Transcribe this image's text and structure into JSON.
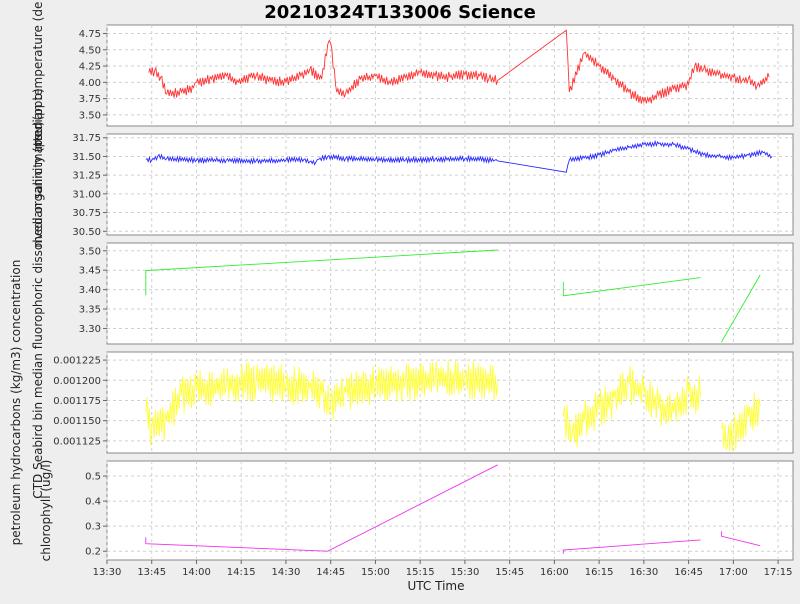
{
  "chart_data": {
    "title": "20210324T133006 Science",
    "xlabel": "UTC Time",
    "x_ticks": [
      "13:30",
      "13:45",
      "14:00",
      "14:15",
      "14:30",
      "14:45",
      "15:00",
      "15:15",
      "15:30",
      "15:45",
      "16:00",
      "16:15",
      "16:30",
      "16:45",
      "17:00",
      "17:15"
    ],
    "x_range": [
      "13:30",
      "17:20"
    ],
    "grid": true,
    "panels": [
      {
        "type": "line",
        "ylabel": "median temperature (de",
        "color": "#ff3333",
        "ylim": [
          3.33,
          4.88
        ],
        "y_ticks": [
          3.5,
          3.75,
          4.0,
          4.25,
          4.5,
          4.75
        ],
        "y_tick_labels": [
          "3.50",
          "3.75",
          "4.00",
          "4.25",
          "4.50",
          "4.75"
        ],
        "noise": 0.16,
        "series": [
          {
            "x": [
              "13:44",
              "13:46",
              "13:48",
              "13:50",
              "13:55",
              "13:59",
              "14:00",
              "14:05",
              "14:10",
              "14:14",
              "14:18",
              "14:20",
              "14:25",
              "14:30",
              "14:35",
              "14:38",
              "14:42",
              "14:44",
              "14:45",
              "14:47",
              "14:50",
              "14:55",
              "15:00",
              "15:05",
              "15:10",
              "15:15",
              "15:20",
              "15:25",
              "15:30",
              "15:35",
              "15:38",
              "15:41"
            ],
            "y": [
              4.15,
              4.18,
              4.08,
              3.82,
              3.85,
              3.92,
              4.0,
              4.05,
              4.1,
              4.0,
              4.08,
              4.1,
              4.02,
              4.0,
              4.1,
              4.2,
              4.05,
              4.58,
              4.6,
              3.85,
              3.83,
              4.05,
              4.1,
              3.98,
              4.07,
              4.15,
              4.1,
              4.08,
              4.12,
              4.1,
              4.05,
              4.03
            ]
          },
          {
            "x": [
              "15:41",
              "16:04",
              "16:05",
              "16:10",
              "16:15",
              "16:20",
              "16:25",
              "16:30",
              "16:35",
              "16:40",
              "16:45",
              "16:47",
              "16:50",
              "16:55",
              "17:00",
              "17:03",
              "17:05",
              "17:08",
              "17:12"
            ],
            "y": [
              4.03,
              4.8,
              3.85,
              4.45,
              4.25,
              4.05,
              3.85,
              3.7,
              3.8,
              3.9,
              3.97,
              4.25,
              4.2,
              4.12,
              4.08,
              4.03,
              4.05,
              3.95,
              4.08
            ]
          }
        ]
      },
      {
        "type": "line",
        "ylabel": "median salinity (psu)",
        "color": "#2a2aff",
        "ylim": [
          30.45,
          31.8
        ],
        "y_ticks": [
          30.5,
          30.75,
          31.0,
          31.25,
          31.5,
          31.75
        ],
        "y_tick_labels": [
          "30.50",
          "30.75",
          "31.00",
          "31.25",
          "31.50",
          "31.75"
        ],
        "noise": 0.07,
        "series": [
          {
            "x": [
              "13:43",
              "13:45",
              "13:47",
              "13:50",
              "14:00",
              "14:10",
              "14:20",
              "14:30",
              "14:36",
              "14:38",
              "14:40",
              "14:41",
              "14:44",
              "14:50",
              "15:00",
              "15:10",
              "15:20",
              "15:30",
              "15:40",
              "15:41"
            ],
            "y": [
              31.46,
              31.45,
              31.5,
              31.47,
              31.45,
              31.45,
              31.44,
              31.45,
              31.46,
              31.43,
              31.42,
              31.46,
              31.5,
              31.47,
              31.46,
              31.45,
              31.46,
              31.47,
              31.45,
              31.44
            ]
          },
          {
            "x": [
              "15:41",
              "16:04",
              "16:05",
              "16:10",
              "16:15",
              "16:20",
              "16:25",
              "16:30",
              "16:35",
              "16:40",
              "16:45",
              "16:50",
              "16:55",
              "17:00",
              "17:05",
              "17:10",
              "17:13"
            ],
            "y": [
              31.44,
              31.29,
              31.45,
              31.48,
              31.52,
              31.58,
              31.62,
              31.66,
              31.67,
              31.66,
              31.6,
              31.52,
              31.5,
              31.48,
              31.52,
              31.55,
              31.5
            ]
          }
        ]
      },
      {
        "type": "line",
        "ylabel": "CTD Seabird bin median fluorophoric dissolved organic matter (ppb)",
        "color": "#33ee33",
        "ylim": [
          3.26,
          3.52
        ],
        "y_ticks": [
          3.3,
          3.35,
          3.4,
          3.45,
          3.5
        ],
        "y_tick_labels": [
          "3.30",
          "3.35",
          "3.40",
          "3.45",
          "3.50"
        ],
        "noise": 0,
        "series": [
          {
            "x": [
              "13:43",
              "13:43",
              "13:43",
              "15:41"
            ],
            "y": [
              3.385,
              3.45,
              3.449,
              3.502
            ]
          },
          {
            "x": [
              "16:03",
              "16:03",
              "16:03",
              "16:49"
            ],
            "y": [
              3.42,
              3.385,
              3.384,
              3.431
            ]
          },
          {
            "x": [
              "16:56",
              "17:09"
            ],
            "y": [
              3.265,
              3.438
            ]
          }
        ]
      },
      {
        "type": "line",
        "ylabel": "petroleum hydrocarbons (kg/m3) concentration",
        "color": "#ffff33",
        "ylim": [
          0.00111,
          0.001235
        ],
        "y_ticks": [
          0.001125,
          0.00115,
          0.001175,
          0.0012,
          0.001225
        ],
        "y_tick_labels": [
          "0.001125",
          "0.001150",
          "0.001175",
          "0.001200",
          "0.001225"
        ],
        "noise": 5e-05,
        "series": [
          {
            "x": [
              "13:43",
              "13:45",
              "13:50",
              "13:55",
              "14:00",
              "14:10",
              "14:20",
              "14:30",
              "14:38",
              "14:42",
              "14:45",
              "14:50",
              "15:00",
              "15:10",
              "15:20",
              "15:30",
              "15:41"
            ],
            "y": [
              0.00116,
              0.00114,
              0.00115,
              0.00118,
              0.001188,
              0.001195,
              0.001198,
              0.001195,
              0.00119,
              0.001182,
              0.001172,
              0.001185,
              0.001195,
              0.001198,
              0.0012,
              0.001202,
              0.001198
            ]
          },
          {
            "x": [
              "16:03",
              "16:06",
              "16:10",
              "16:15",
              "16:20",
              "16:25",
              "16:30",
              "16:35",
              "16:40",
              "16:45",
              "16:49"
            ],
            "y": [
              0.001155,
              0.001135,
              0.00115,
              0.001165,
              0.001178,
              0.001195,
              0.001185,
              0.001165,
              0.00116,
              0.001185,
              0.00118
            ]
          },
          {
            "x": [
              "16:56",
              "16:58",
              "17:00",
              "17:05",
              "17:09"
            ],
            "y": [
              0.00114,
              0.001118,
              0.001135,
              0.001155,
              0.001168
            ]
          }
        ]
      },
      {
        "type": "line",
        "ylabel": "chlorophyll (ug/l)",
        "color": "#ee33ee",
        "ylim": [
          0.165,
          0.56
        ],
        "y_ticks": [
          0.2,
          0.3,
          0.4,
          0.5
        ],
        "y_tick_labels": [
          "0.2",
          "0.3",
          "0.4",
          "0.5"
        ],
        "noise": 0,
        "series": [
          {
            "x": [
              "13:43",
              "13:43",
              "13:43",
              "14:44",
              "15:41"
            ],
            "y": [
              0.255,
              0.235,
              0.23,
              0.2,
              0.545
            ]
          },
          {
            "x": [
              "16:03",
              "16:03",
              "16:49"
            ],
            "y": [
              0.19,
              0.205,
              0.245
            ]
          },
          {
            "x": [
              "16:56",
              "16:56",
              "16:56",
              "17:09"
            ],
            "y": [
              0.28,
              0.262,
              0.26,
              0.222
            ]
          }
        ]
      }
    ]
  }
}
